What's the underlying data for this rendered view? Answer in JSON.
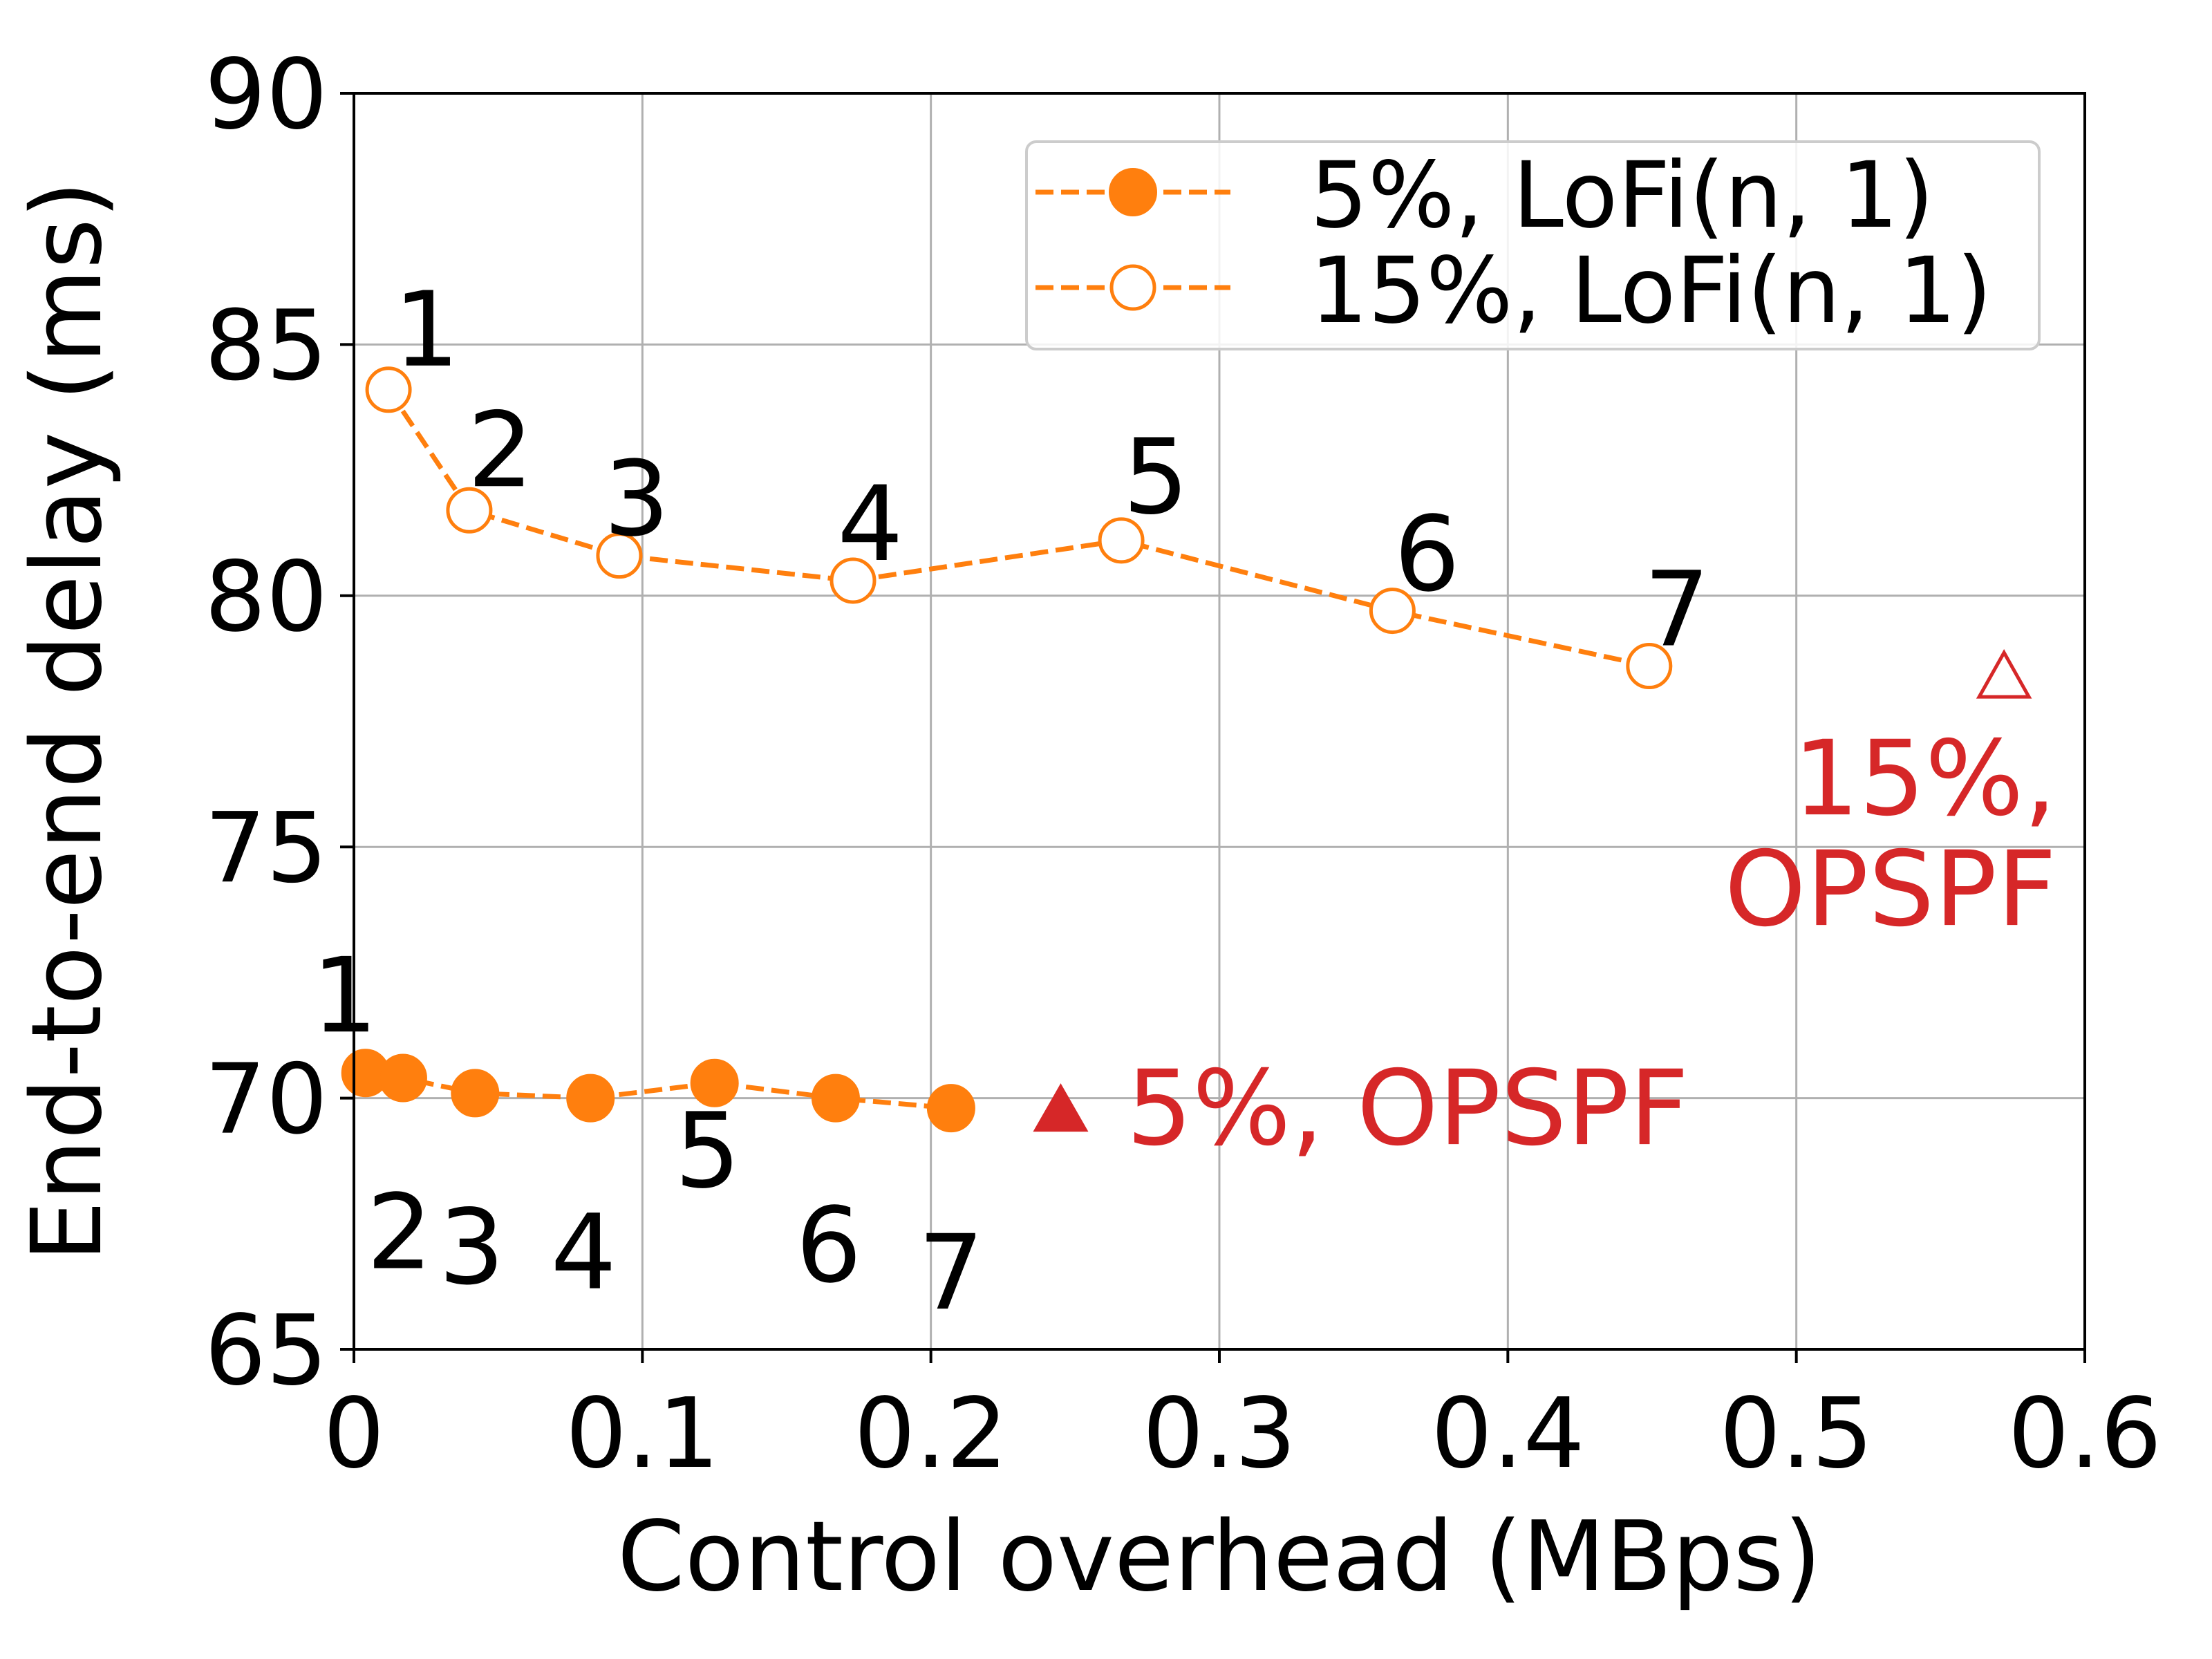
{
  "chart_data": {
    "type": "line",
    "xlabel": "Control overhead (MBps)",
    "ylabel": "End-to-end delay (ms)",
    "xlim": [
      0,
      0.6
    ],
    "ylim": [
      65,
      90
    ],
    "xticks": [
      0,
      0.1,
      0.2,
      0.3,
      0.4,
      0.5,
      0.6
    ],
    "xtick_labels": [
      "0",
      "0.1",
      "0.2",
      "0.3",
      "0.4",
      "0.5",
      "0.6"
    ],
    "yticks": [
      65,
      70,
      75,
      80,
      85,
      90
    ],
    "ytick_labels": [
      "65",
      "70",
      "75",
      "80",
      "85",
      "90"
    ],
    "grid": true,
    "legend_position": "top-right",
    "series": [
      {
        "name": "5%, LoFi(n, 1)",
        "color": "#ff7f0e",
        "line_style": "dashed",
        "marker": "filled-circle",
        "point_labels_position": "below",
        "x": [
          0.004,
          0.017,
          0.042,
          0.082,
          0.125,
          0.167,
          0.207
        ],
        "y": [
          70.5,
          70.4,
          70.1,
          70.0,
          70.3,
          70.0,
          69.8
        ],
        "point_labels": [
          "1",
          "2",
          "3",
          "4",
          "5",
          "6",
          "7"
        ]
      },
      {
        "name": "15%, LoFi(n, 1)",
        "color": "#ff7f0e",
        "line_style": "dashed",
        "marker": "hollow-circle",
        "point_labels_position": "above",
        "x": [
          0.012,
          0.04,
          0.092,
          0.173,
          0.266,
          0.36,
          0.449
        ],
        "y": [
          84.1,
          81.7,
          80.8,
          80.3,
          81.1,
          79.7,
          78.6
        ],
        "point_labels": [
          "1",
          "2",
          "3",
          "4",
          "5",
          "6",
          "7"
        ]
      }
    ],
    "annotations": [
      {
        "marker": "filled-triangle",
        "marker_color": "#d62728",
        "x": 0.245,
        "y": 69.8,
        "label_lines": [
          "5%, OPSPF"
        ],
        "label_color": "#d62728"
      },
      {
        "marker": "hollow-triangle",
        "marker_color": "#d62728",
        "x": 0.572,
        "y": 78.4,
        "label_lines": [
          "15%,",
          "OPSPF"
        ],
        "label_color": "#d62728"
      }
    ]
  }
}
